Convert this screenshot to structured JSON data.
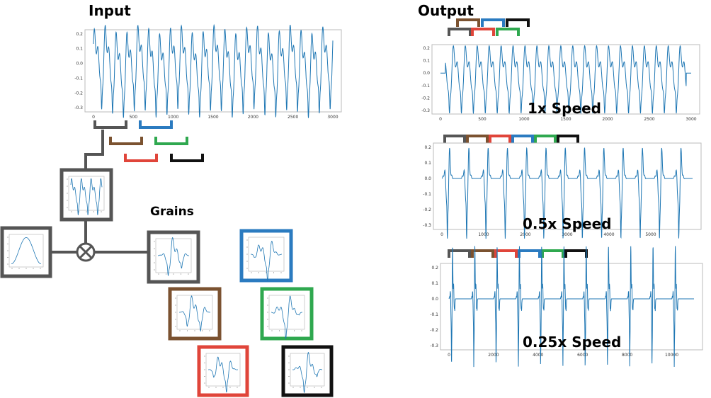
{
  "titles": {
    "input": "Input",
    "output": "Output",
    "grains": "Grains"
  },
  "speed_labels": [
    "1x Speed",
    "0.5x Speed",
    "0.25x Speed"
  ],
  "grain_colors": [
    "#555555",
    "#7b5230",
    "#e0453a",
    "#2b7bc0",
    "#2fa84f",
    "#111111"
  ],
  "signal_color": "#1f77b4",
  "icons": {
    "multiply": "circled-times-icon"
  },
  "chart_data": [
    {
      "id": "input",
      "type": "line",
      "ylim": [
        -0.3,
        0.2
      ],
      "xlim": [
        0,
        3000
      ],
      "yticks": [
        "0.2",
        "0.1",
        "0.0",
        "-0.1",
        "-0.2",
        "-0.3"
      ],
      "xticks": [
        "0",
        "500",
        "1000",
        "1500",
        "2000",
        "2500",
        "3000"
      ]
    },
    {
      "id": "out-1x",
      "type": "line",
      "ylim": [
        -0.3,
        0.2
      ],
      "xlim": [
        0,
        3000
      ],
      "yticks": [
        "0.2",
        "0.1",
        "0.0",
        "-0.1",
        "-0.2",
        "-0.3"
      ],
      "xticks": [
        "0",
        "500",
        "1000",
        "1500",
        "2000",
        "2500",
        "3000"
      ]
    },
    {
      "id": "out-05x",
      "type": "line",
      "ylim": [
        -0.3,
        0.2
      ],
      "xlim": [
        0,
        6000
      ],
      "yticks": [
        "0.2",
        "0.1",
        "0.0",
        "-0.1",
        "-0.2",
        "-0.3"
      ],
      "xticks": [
        "0",
        "1000",
        "2000",
        "3000",
        "4000",
        "5000"
      ]
    },
    {
      "id": "out-025x",
      "type": "line",
      "ylim": [
        -0.3,
        0.2
      ],
      "xlim": [
        0,
        11000
      ],
      "yticks": [
        "0.2",
        "0.1",
        "0.0",
        "-0.1",
        "-0.2",
        "-0.3"
      ],
      "xticks": [
        "0",
        "2000",
        "4000",
        "6000",
        "8000",
        "10000"
      ]
    }
  ]
}
